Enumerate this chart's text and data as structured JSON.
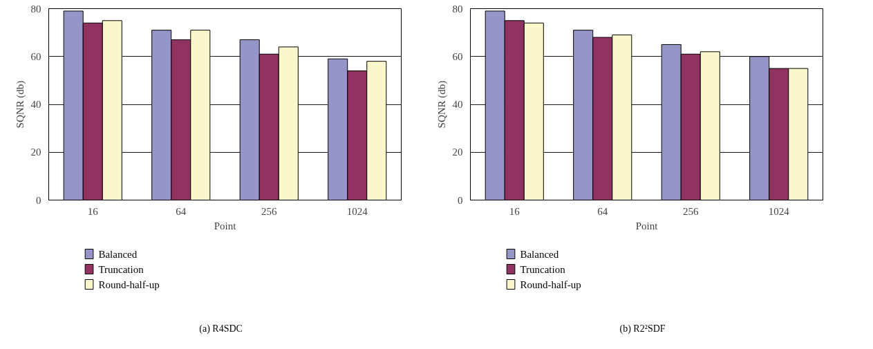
{
  "chart_data": [
    {
      "type": "bar",
      "categories": [
        "16",
        "64",
        "256",
        "1024"
      ],
      "xlabel": "Point",
      "ylabel": "SQNR (db)",
      "ylim": [
        0,
        80
      ],
      "yticks": [
        0,
        20,
        40,
        60,
        80
      ],
      "grid": "y",
      "legend": "bottom left",
      "annotations": [
        "(a)  R4SDC"
      ],
      "series": [
        {
          "name": "Balanced",
          "color": "#9595c8",
          "values": [
            79,
            71,
            67,
            59
          ]
        },
        {
          "name": "Truncation",
          "color": "#913360",
          "values": [
            74,
            67,
            61,
            54
          ]
        },
        {
          "name": "Round-half-up",
          "color": "#fbf7cc",
          "values": [
            75,
            71,
            64,
            58
          ]
        }
      ]
    },
    {
      "type": "bar",
      "categories": [
        "16",
        "64",
        "256",
        "1024"
      ],
      "xlabel": "Point",
      "ylabel": "SQNR (db)",
      "ylim": [
        0,
        80
      ],
      "yticks": [
        0,
        20,
        40,
        60,
        80
      ],
      "grid": "y",
      "legend": "bottom left",
      "annotations": [
        "(b)  R2²SDF"
      ],
      "series": [
        {
          "name": "Balanced",
          "color": "#9595c8",
          "values": [
            79,
            71,
            65,
            60
          ]
        },
        {
          "name": "Truncation",
          "color": "#913360",
          "values": [
            75,
            68,
            61,
            55
          ]
        },
        {
          "name": "Round-half-up",
          "color": "#fbf7cc",
          "values": [
            74,
            69,
            62,
            55
          ]
        }
      ]
    }
  ]
}
